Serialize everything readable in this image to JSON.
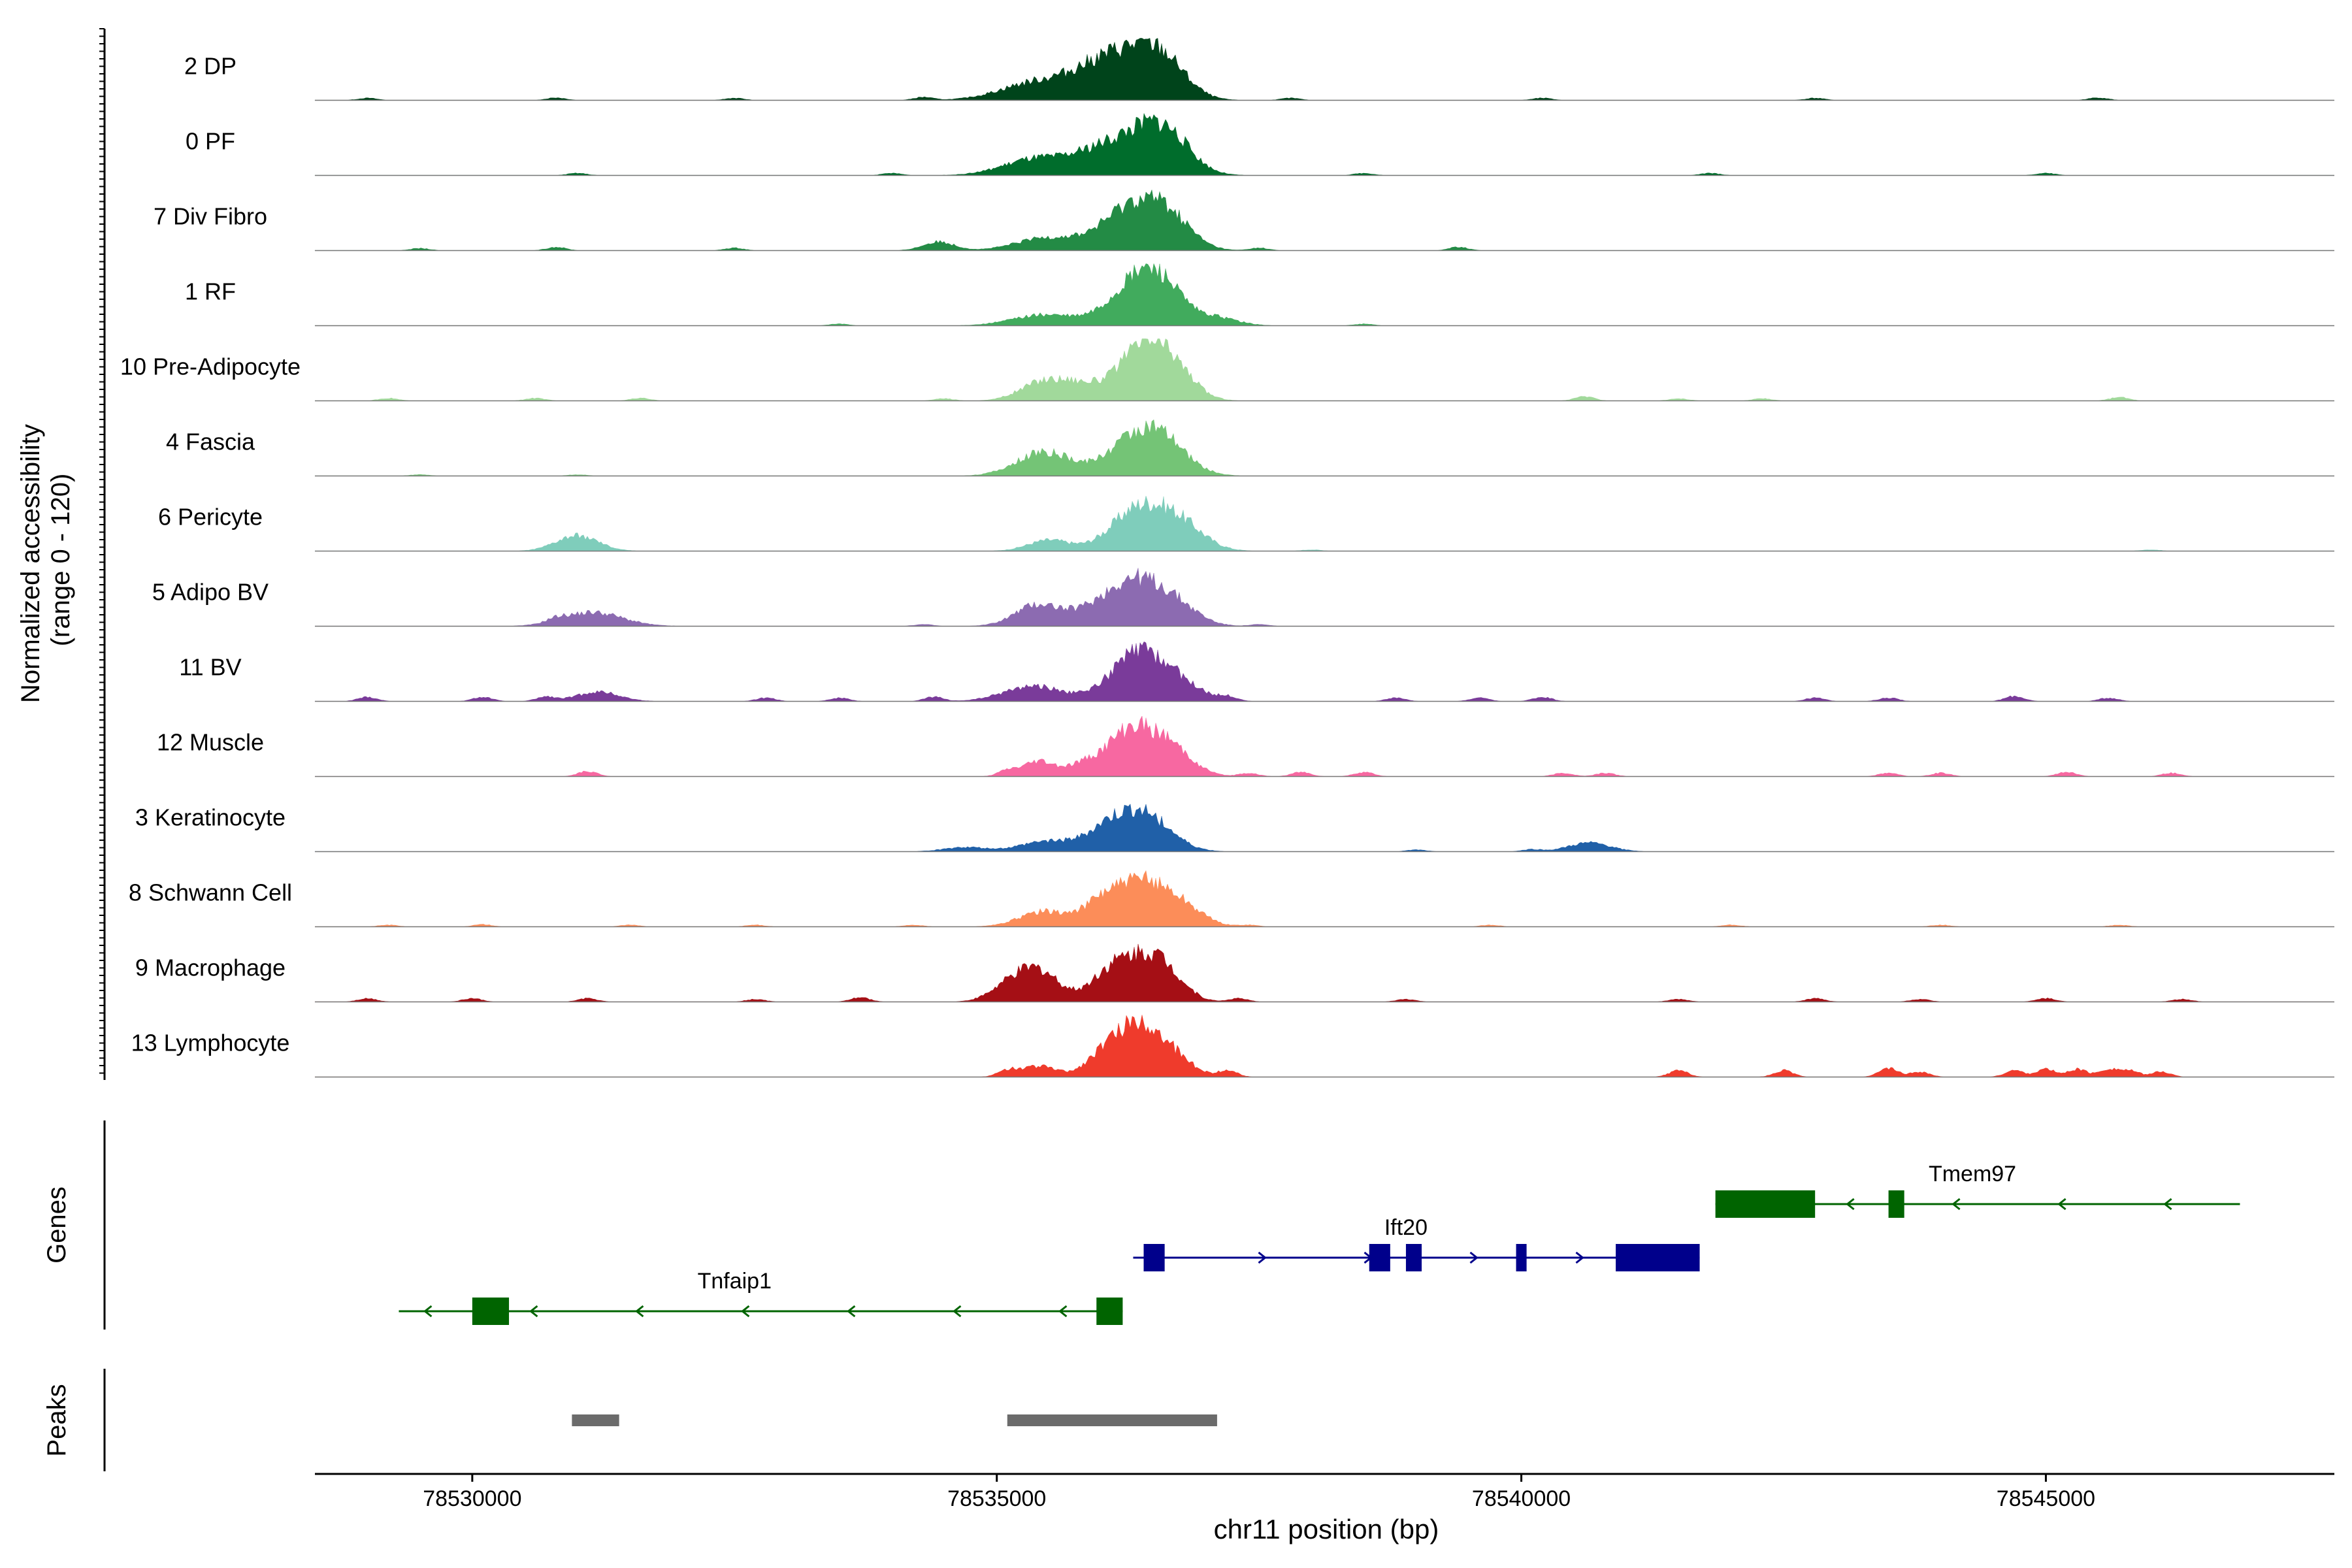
{
  "chart_data": {
    "type": "area",
    "subtype": "genome-browser coverage tracks",
    "xlabel": "chr11 position (bp)",
    "ylabel": "Normalized accessibility\n(range 0 - 120)",
    "ylabel_line1": "Normalized accessibility",
    "ylabel_line2": "(range 0 - 120)",
    "y_range": [
      0,
      120
    ],
    "xlim": [
      78528500,
      78547750
    ],
    "xticks": [
      78530000,
      78535000,
      78540000,
      78545000
    ],
    "xtick_labels": [
      "78530000",
      "78535000",
      "78540000",
      "78545000"
    ],
    "panel_labels": {
      "genes": "Genes",
      "peaks": "Peaks"
    },
    "tracks": [
      {
        "name": "2 DP",
        "color": "#00441b",
        "peaks": [
          [
            78535400,
            42,
            350
          ],
          [
            78536300,
            95,
            300
          ],
          [
            78536600,
            55,
            220
          ],
          [
            78535900,
            38,
            250
          ]
        ],
        "noise": [
          [
            78529000,
            5
          ],
          [
            78530800,
            6
          ],
          [
            78532500,
            5
          ],
          [
            78534300,
            7
          ],
          [
            78537800,
            5
          ],
          [
            78540200,
            5
          ],
          [
            78542800,
            5
          ],
          [
            78545500,
            6
          ]
        ]
      },
      {
        "name": "0 PF",
        "color": "#006d2c",
        "peaks": [
          [
            78535400,
            40,
            320
          ],
          [
            78536350,
            92,
            300
          ],
          [
            78536650,
            55,
            220
          ],
          [
            78535900,
            25,
            200
          ]
        ],
        "noise": [
          [
            78531000,
            5
          ],
          [
            78534000,
            5
          ],
          [
            78538500,
            5
          ],
          [
            78541800,
            5
          ],
          [
            78545000,
            5
          ]
        ]
      },
      {
        "name": "7 Div Fibro",
        "color": "#238b45",
        "peaks": [
          [
            78535500,
            30,
            300
          ],
          [
            78536300,
            100,
            280
          ],
          [
            78536650,
            55,
            220
          ],
          [
            78534450,
            20,
            150
          ]
        ],
        "noise": [
          [
            78529500,
            5
          ],
          [
            78530800,
            8
          ],
          [
            78532500,
            6
          ],
          [
            78537500,
            6
          ],
          [
            78539400,
            8
          ]
        ]
      },
      {
        "name": "1 RF",
        "color": "#41ab5d",
        "peaks": [
          [
            78535450,
            25,
            300
          ],
          [
            78536300,
            75,
            260
          ],
          [
            78536550,
            80,
            220
          ],
          [
            78537100,
            18,
            200
          ]
        ],
        "noise": [
          [
            78533500,
            4
          ],
          [
            78538500,
            4
          ]
        ]
      },
      {
        "name": "10 Pre-Adipocyte",
        "color": "#a1d99b",
        "peaks": [
          [
            78535450,
            45,
            220
          ],
          [
            78535800,
            28,
            180
          ],
          [
            78536400,
            120,
            250
          ],
          [
            78536700,
            45,
            200
          ]
        ],
        "noise": [
          [
            78529200,
            6
          ],
          [
            78530600,
            6
          ],
          [
            78531600,
            6
          ],
          [
            78534500,
            5
          ],
          [
            78540600,
            10
          ],
          [
            78541500,
            5
          ],
          [
            78542300,
            5
          ],
          [
            78545700,
            8
          ]
        ]
      },
      {
        "name": "4 Fascia",
        "color": "#74c476",
        "peaks": [
          [
            78535450,
            55,
            260
          ],
          [
            78536300,
            75,
            260
          ],
          [
            78536600,
            60,
            240
          ]
        ],
        "noise": [
          [
            78529500,
            3
          ],
          [
            78531000,
            3
          ]
        ]
      },
      {
        "name": "6 Pericyte",
        "color": "#7fcdbb",
        "peaks": [
          [
            78531000,
            35,
            200
          ],
          [
            78535500,
            25,
            200
          ],
          [
            78536350,
            95,
            260
          ],
          [
            78536750,
            55,
            230
          ]
        ],
        "noise": [
          [
            78538000,
            3
          ],
          [
            78546000,
            3
          ]
        ]
      },
      {
        "name": "5 Adipo BV",
        "color": "#8c6bb1",
        "peaks": [
          [
            78531150,
            32,
            280
          ],
          [
            78535400,
            50,
            220
          ],
          [
            78536300,
            100,
            250
          ],
          [
            78536700,
            45,
            220
          ],
          [
            78535900,
            25,
            200
          ]
        ],
        "noise": [
          [
            78530800,
            8
          ],
          [
            78534300,
            4
          ],
          [
            78537500,
            4
          ]
        ]
      },
      {
        "name": "11 BV",
        "color": "#7a3b9a",
        "peaks": [
          [
            78535350,
            35,
            280
          ],
          [
            78536350,
            110,
            260
          ],
          [
            78536750,
            30,
            220
          ],
          [
            78531200,
            22,
            200
          ]
        ],
        "noise": [
          [
            78529000,
            10
          ],
          [
            78530100,
            10
          ],
          [
            78530700,
            10
          ],
          [
            78532800,
            8
          ],
          [
            78533500,
            8
          ],
          [
            78534400,
            10
          ],
          [
            78537200,
            10
          ],
          [
            78538800,
            8
          ],
          [
            78539600,
            8
          ],
          [
            78540200,
            10
          ],
          [
            78542800,
            8
          ],
          [
            78543500,
            8
          ],
          [
            78544700,
            12
          ],
          [
            78545600,
            8
          ]
        ]
      },
      {
        "name": "12 Muscle",
        "color": "#f768a1",
        "peaks": [
          [
            78535400,
            35,
            150
          ],
          [
            78536300,
            110,
            250
          ],
          [
            78536700,
            45,
            200
          ],
          [
            78535800,
            20,
            150
          ]
        ],
        "noise": [
          [
            78531100,
            12
          ],
          [
            78535100,
            12
          ],
          [
            78537400,
            8
          ],
          [
            78537900,
            10
          ],
          [
            78538500,
            10
          ],
          [
            78540400,
            8
          ],
          [
            78540800,
            8
          ],
          [
            78543500,
            8
          ],
          [
            78544000,
            8
          ],
          [
            78545200,
            10
          ],
          [
            78546200,
            8
          ]
        ]
      },
      {
        "name": "3 Keratinocyte",
        "color": "#2060a8",
        "peaks": [
          [
            78535500,
            25,
            260
          ],
          [
            78536400,
            85,
            250
          ],
          [
            78536050,
            40,
            200
          ],
          [
            78540650,
            20,
            200
          ],
          [
            78534700,
            10,
            200
          ]
        ],
        "noise": [
          [
            78540100,
            5
          ],
          [
            78539000,
            4
          ]
        ]
      },
      {
        "name": "8 Schwann Cell",
        "color": "#fc8d59",
        "peaks": [
          [
            78535450,
            35,
            230
          ],
          [
            78536400,
            100,
            260
          ],
          [
            78536000,
            45,
            180
          ],
          [
            78536800,
            30,
            200
          ]
        ],
        "noise": [
          [
            78529200,
            4
          ],
          [
            78530100,
            5
          ],
          [
            78531500,
            4
          ],
          [
            78532700,
            4
          ],
          [
            78534200,
            4
          ],
          [
            78537400,
            4
          ],
          [
            78539700,
            4
          ],
          [
            78542000,
            4
          ],
          [
            78544000,
            4
          ],
          [
            78545700,
            4
          ]
        ]
      },
      {
        "name": "9 Macrophage",
        "color": "#a50f15",
        "peaks": [
          [
            78535100,
            30,
            180
          ],
          [
            78535400,
            70,
            200
          ],
          [
            78536050,
            55,
            180
          ],
          [
            78536400,
            95,
            220
          ],
          [
            78536650,
            35,
            180
          ]
        ],
        "noise": [
          [
            78529000,
            8
          ],
          [
            78530000,
            8
          ],
          [
            78531100,
            8
          ],
          [
            78532700,
            6
          ],
          [
            78533700,
            10
          ],
          [
            78537300,
            8
          ],
          [
            78538900,
            6
          ],
          [
            78541500,
            6
          ],
          [
            78542800,
            8
          ],
          [
            78543800,
            6
          ],
          [
            78545000,
            8
          ],
          [
            78546300,
            6
          ]
        ]
      },
      {
        "name": "13 Lymphocyte",
        "color": "#ef3b2c",
        "peaks": [
          [
            78536350,
            120,
            200
          ],
          [
            78536000,
            45,
            160
          ],
          [
            78536700,
            40,
            180
          ],
          [
            78535400,
            25,
            180
          ]
        ],
        "noise": [
          [
            78535100,
            12
          ],
          [
            78537200,
            15
          ],
          [
            78541500,
            15
          ],
          [
            78542500,
            15
          ],
          [
            78543500,
            20
          ],
          [
            78543800,
            12
          ],
          [
            78544700,
            15
          ],
          [
            78545000,
            18
          ],
          [
            78545300,
            18
          ],
          [
            78545600,
            18
          ],
          [
            78545800,
            14
          ],
          [
            78546100,
            12
          ]
        ]
      }
    ],
    "genes": [
      {
        "name": "Tnfaip1",
        "strand": "-",
        "row": 3,
        "start": 78529300,
        "end": 78536200,
        "color": "#006400",
        "exons": [
          [
            78530000,
            78530350
          ],
          [
            78535950,
            78536200
          ]
        ],
        "label_x": 78532500
      },
      {
        "name": "Ift20",
        "strand": "+",
        "row": 2,
        "start": 78536300,
        "end": 78541700,
        "color": "#00008b",
        "exons": [
          [
            78536400,
            78536600
          ],
          [
            78538550,
            78538750
          ],
          [
            78538900,
            78539050
          ],
          [
            78539950,
            78540050
          ],
          [
            78540900,
            78541700
          ]
        ],
        "label_x": 78538900
      },
      {
        "name": "Tmem97",
        "strand": "-",
        "row": 1,
        "start": 78541850,
        "end": 78546850,
        "color": "#006400",
        "exons": [
          [
            78541850,
            78542800
          ],
          [
            78543500,
            78543650
          ]
        ],
        "label_x": 78544300
      }
    ],
    "peaks": [
      [
        78530950,
        78531400
      ],
      [
        78535100,
        78537100
      ]
    ]
  }
}
